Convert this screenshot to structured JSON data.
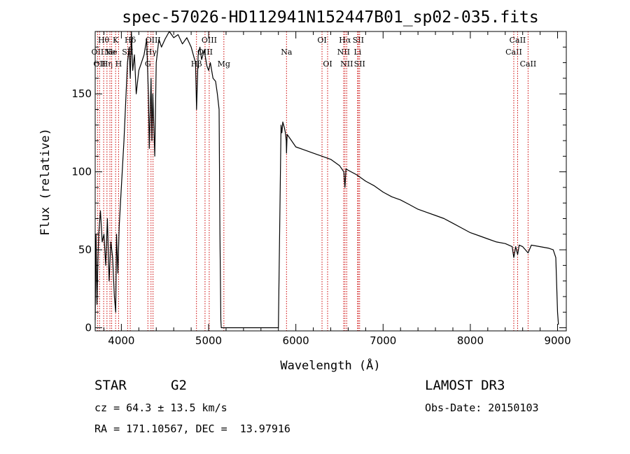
{
  "chart_data": {
    "type": "line",
    "title": "spec-57026-HD112941N152447B01_sp02-035.fits",
    "xlabel": "Wavelength (Å)",
    "ylabel": "Flux (relative)",
    "xlim": [
      3700,
      9100
    ],
    "ylim": [
      -2,
      190
    ],
    "xticks": [
      4000,
      5000,
      6000,
      7000,
      8000,
      9000
    ],
    "yticks": [
      0,
      50,
      100,
      150
    ],
    "grid": false,
    "series": [
      {
        "color": "#000000",
        "x": [
          3700,
          3710,
          3720,
          3730,
          3740,
          3760,
          3780,
          3800,
          3820,
          3840,
          3860,
          3880,
          3900,
          3920,
          3935,
          3945,
          3960,
          3975,
          3990,
          4010,
          4030,
          4050,
          4070,
          4090,
          4102,
          4115,
          4130,
          4150,
          4170,
          4200,
          4230,
          4260,
          4290,
          4310,
          4320,
          4340,
          4350,
          4360,
          4383,
          4400,
          4430,
          4460,
          4500,
          4550,
          4600,
          4650,
          4700,
          4750,
          4800,
          4850,
          4862,
          4880,
          4900,
          4920,
          4950,
          4980,
          5000,
          5020,
          5050,
          5080,
          5100,
          5120,
          5130,
          5140,
          5145,
          5800,
          5830,
          5840,
          5850,
          5870,
          5880,
          5890,
          5893,
          5900,
          5950,
          6000,
          6100,
          6200,
          6300,
          6400,
          6500,
          6550,
          6563,
          6575,
          6600,
          6700,
          6800,
          6900,
          7000,
          7100,
          7200,
          7300,
          7400,
          7500,
          7600,
          7700,
          7800,
          7900,
          8000,
          8100,
          8200,
          8300,
          8400,
          8480,
          8498,
          8520,
          8542,
          8560,
          8600,
          8662,
          8700,
          8800,
          8900,
          8950,
          8980,
          9000,
          9010
        ],
        "y": [
          5,
          60,
          15,
          40,
          60,
          75,
          55,
          60,
          40,
          70,
          30,
          55,
          45,
          20,
          10,
          60,
          35,
          65,
          80,
          100,
          120,
          145,
          170,
          180,
          160,
          190,
          165,
          175,
          150,
          165,
          170,
          175,
          185,
          150,
          115,
          160,
          120,
          150,
          110,
          170,
          185,
          180,
          185,
          190,
          186,
          188,
          182,
          186,
          180,
          170,
          140,
          175,
          180,
          172,
          178,
          168,
          165,
          170,
          160,
          158,
          150,
          140,
          60,
          5,
          0,
          0,
          130,
          125,
          132,
          128,
          125,
          120,
          112,
          124,
          120,
          116,
          114,
          112,
          110,
          108,
          104,
          100,
          90,
          102,
          101,
          98,
          94,
          91,
          87,
          84,
          82,
          79,
          76,
          74,
          72,
          70,
          67,
          64,
          61,
          59,
          57,
          55,
          54,
          52,
          45,
          52,
          47,
          53,
          52,
          48,
          53,
          52,
          51,
          50,
          45,
          10,
          2
        ]
      }
    ],
    "line_markers": [
      {
        "wl": 3727,
        "label": "OII",
        "row": 2
      },
      {
        "wl": 3750,
        "label": "OII",
        "row": 3
      },
      {
        "wl": 3797,
        "label": "Hθ",
        "row": 1
      },
      {
        "wl": 3835,
        "label": "Hη",
        "row": 3
      },
      {
        "wl": 3869,
        "label": "Ne",
        "row": 2
      },
      {
        "wl": 3889,
        "label": "He",
        "row": 2
      },
      {
        "wl": 3934,
        "label": "K",
        "row": 1
      },
      {
        "wl": 3968,
        "label": "H",
        "row": 3
      },
      {
        "wl": 4072,
        "label": "SII",
        "row": 2
      },
      {
        "wl": 4102,
        "label": "Hδ",
        "row": 1
      },
      {
        "wl": 4304,
        "label": "G",
        "row": 3
      },
      {
        "wl": 4340,
        "label": "Hγ",
        "row": 2
      },
      {
        "wl": 4363,
        "label": "OIII",
        "row": 1
      },
      {
        "wl": 4861,
        "label": "Hβ",
        "row": 3
      },
      {
        "wl": 4959,
        "label": "OIII",
        "row": 2
      },
      {
        "wl": 5007,
        "label": "OIII",
        "row": 1
      },
      {
        "wl": 5175,
        "label": "Mg",
        "row": 3
      },
      {
        "wl": 5893,
        "label": "Na",
        "row": 2
      },
      {
        "wl": 6300,
        "label": "OI",
        "row": 1
      },
      {
        "wl": 6364,
        "label": "OI",
        "row": 3
      },
      {
        "wl": 6548,
        "label": "NII",
        "row": 2
      },
      {
        "wl": 6563,
        "label": "Hα",
        "row": 1
      },
      {
        "wl": 6583,
        "label": "NII",
        "row": 3
      },
      {
        "wl": 6708,
        "label": "Li",
        "row": 2
      },
      {
        "wl": 6716,
        "label": "SII",
        "row": 1
      },
      {
        "wl": 6731,
        "label": "SII",
        "row": 3
      },
      {
        "wl": 8498,
        "label": "CaII",
        "row": 2
      },
      {
        "wl": 8542,
        "label": "CaII",
        "row": 1
      },
      {
        "wl": 8662,
        "label": "CaII",
        "row": 3
      }
    ]
  },
  "info": {
    "class_label": "STAR",
    "subclass": "G2",
    "cz": "cz = 64.3 ± 13.5 km/s",
    "radec": "RA = 171.10567, DEC =  13.97916",
    "survey": "LAMOST DR3",
    "obsdate": "Obs-Date: 20150103"
  },
  "colors": {
    "spectrum": "#000000",
    "marker": "#cc0000"
  }
}
